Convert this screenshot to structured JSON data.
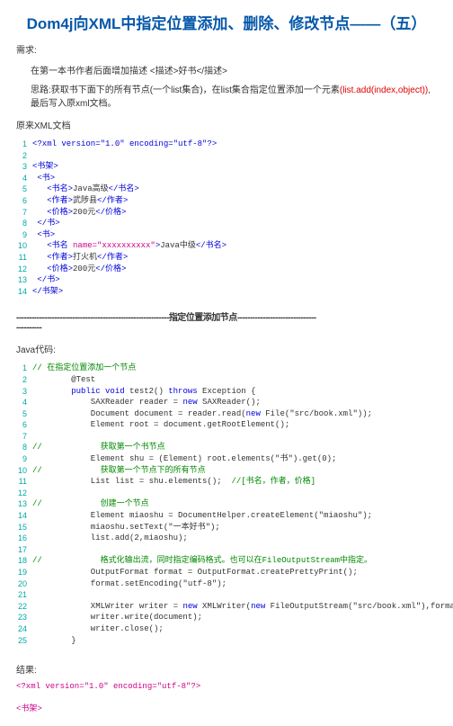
{
  "title": "Dom4j向XML中指定位置添加、删除、修改节点——（五）",
  "req_label": "需求:",
  "req_line1": "在第一本书作者后面增加描述 <描述>好书</描述>",
  "req_line2_a": "思路:获取书下面下的所有节点(一个list集合)，在list集合指定位置添加一个元素",
  "req_line2_b": "(list.add(index,object))",
  "req_line2_c": ",最后写入原xml文档。",
  "xml_label": "原来XML文档",
  "xml_lines": [
    {
      "n": "1",
      "parts": [
        {
          "c": "blue",
          "t": "<?xml version=\"1.0\" encoding=\"utf-8\"?>"
        }
      ]
    },
    {
      "n": "2",
      "parts": []
    },
    {
      "n": "3",
      "parts": [
        {
          "c": "blue",
          "t": "<书架>"
        }
      ]
    },
    {
      "n": "4",
      "parts": [
        {
          "c": "",
          "t": " "
        },
        {
          "c": "blue",
          "t": "<书>"
        }
      ]
    },
    {
      "n": "5",
      "parts": [
        {
          "c": "",
          "t": "   "
        },
        {
          "c": "blue",
          "t": "<书名>"
        },
        {
          "c": "",
          "t": "Java高级"
        },
        {
          "c": "blue",
          "t": "</书名>"
        }
      ]
    },
    {
      "n": "6",
      "parts": [
        {
          "c": "",
          "t": "   "
        },
        {
          "c": "blue",
          "t": "<作者>"
        },
        {
          "c": "",
          "t": "武陟县"
        },
        {
          "c": "blue",
          "t": "</作者>"
        }
      ]
    },
    {
      "n": "7",
      "parts": [
        {
          "c": "",
          "t": "   "
        },
        {
          "c": "blue",
          "t": "<价格>"
        },
        {
          "c": "",
          "t": "200元"
        },
        {
          "c": "blue",
          "t": "</价格>"
        }
      ]
    },
    {
      "n": "8",
      "parts": [
        {
          "c": "",
          "t": " "
        },
        {
          "c": "blue",
          "t": "</书>"
        }
      ]
    },
    {
      "n": "9",
      "parts": [
        {
          "c": "",
          "t": " "
        },
        {
          "c": "blue",
          "t": "<书>"
        }
      ]
    },
    {
      "n": "10",
      "parts": [
        {
          "c": "",
          "t": "   "
        },
        {
          "c": "blue",
          "t": "<书名 "
        },
        {
          "c": "magenta",
          "t": "name=\"xxxxxxxxxx\""
        },
        {
          "c": "blue",
          "t": ">"
        },
        {
          "c": "",
          "t": "Java中级"
        },
        {
          "c": "blue",
          "t": "</书名>"
        }
      ]
    },
    {
      "n": "11",
      "parts": [
        {
          "c": "",
          "t": "   "
        },
        {
          "c": "blue",
          "t": "<作者>"
        },
        {
          "c": "",
          "t": "打火机"
        },
        {
          "c": "blue",
          "t": "</作者>"
        }
      ]
    },
    {
      "n": "12",
      "parts": [
        {
          "c": "",
          "t": "   "
        },
        {
          "c": "blue",
          "t": "<价格>"
        },
        {
          "c": "",
          "t": "200元"
        },
        {
          "c": "blue",
          "t": "</价格>"
        }
      ]
    },
    {
      "n": "13",
      "parts": [
        {
          "c": "",
          "t": " "
        },
        {
          "c": "blue",
          "t": "</书>"
        }
      ]
    },
    {
      "n": "14",
      "parts": [
        {
          "c": "blue",
          "t": "</书架>"
        }
      ]
    }
  ],
  "sep1_a": "------------------------------------------------------------",
  "sep1_b": "指定位置添加节点",
  "sep1_c": "-------------------------------",
  "sep1_d": "----------",
  "java_label": "Java代码:",
  "java_lines": [
    {
      "n": "1",
      "parts": [
        {
          "c": "green",
          "t": "// 在指定位置添加一个节点"
        }
      ]
    },
    {
      "n": "2",
      "parts": [
        {
          "c": "",
          "t": "        @Test"
        }
      ]
    },
    {
      "n": "3",
      "parts": [
        {
          "c": "",
          "t": "        "
        },
        {
          "c": "kw",
          "t": "public void"
        },
        {
          "c": "",
          "t": " test2() "
        },
        {
          "c": "kw",
          "t": "throws"
        },
        {
          "c": "",
          "t": " Exception {"
        }
      ]
    },
    {
      "n": "4",
      "parts": [
        {
          "c": "",
          "t": "            SAXReader reader = "
        },
        {
          "c": "kw",
          "t": "new"
        },
        {
          "c": "",
          "t": " SAXReader();"
        }
      ]
    },
    {
      "n": "5",
      "parts": [
        {
          "c": "",
          "t": "            Document document = reader.read("
        },
        {
          "c": "kw",
          "t": "new"
        },
        {
          "c": "",
          "t": " File(\"src/book.xml\"));"
        }
      ]
    },
    {
      "n": "6",
      "parts": [
        {
          "c": "",
          "t": "            Element root = document.getRootElement();"
        }
      ]
    },
    {
      "n": "7",
      "parts": []
    },
    {
      "n": "8",
      "parts": [
        {
          "c": "green",
          "t": "//            获取第一个书节点"
        }
      ]
    },
    {
      "n": "9",
      "parts": [
        {
          "c": "",
          "t": "            Element shu = (Element) root.elements(\"书\").get(0);"
        }
      ]
    },
    {
      "n": "10",
      "parts": [
        {
          "c": "green",
          "t": "//            获取第一个节点下的所有节点"
        }
      ]
    },
    {
      "n": "11",
      "parts": [
        {
          "c": "",
          "t": "            List list = shu.elements();  "
        },
        {
          "c": "green",
          "t": "//[书名，作者，价格]"
        }
      ]
    },
    {
      "n": "12",
      "parts": []
    },
    {
      "n": "13",
      "parts": [
        {
          "c": "green",
          "t": "//            创建一个节点"
        }
      ]
    },
    {
      "n": "14",
      "parts": [
        {
          "c": "",
          "t": "            Element miaoshu = DocumentHelper.createElement(\"miaoshu\");"
        }
      ]
    },
    {
      "n": "15",
      "parts": [
        {
          "c": "",
          "t": "            miaoshu.setText(\"一本好书\");"
        }
      ]
    },
    {
      "n": "16",
      "parts": [
        {
          "c": "",
          "t": "            list.add(2,miaoshu);"
        }
      ]
    },
    {
      "n": "17",
      "parts": []
    },
    {
      "n": "18",
      "parts": [
        {
          "c": "green",
          "t": "//            格式化输出流，同时指定编码格式。也可以在FileOutputStream中指定。"
        }
      ]
    },
    {
      "n": "19",
      "parts": [
        {
          "c": "",
          "t": "            OutputFormat format = OutputFormat.createPrettyPrint();"
        }
      ]
    },
    {
      "n": "20",
      "parts": [
        {
          "c": "",
          "t": "            format.setEncoding(\"utf-8\");"
        }
      ]
    },
    {
      "n": "21",
      "parts": []
    },
    {
      "n": "22",
      "parts": [
        {
          "c": "",
          "t": "            XMLWriter writer = "
        },
        {
          "c": "kw",
          "t": "new"
        },
        {
          "c": "",
          "t": " XMLWriter("
        },
        {
          "c": "kw",
          "t": "new"
        },
        {
          "c": "",
          "t": " FileOutputStream(\"src/book.xml\"),format);"
        }
      ]
    },
    {
      "n": "23",
      "parts": [
        {
          "c": "",
          "t": "            writer.write(document);"
        }
      ]
    },
    {
      "n": "24",
      "parts": [
        {
          "c": "",
          "t": "            writer.close();"
        }
      ]
    },
    {
      "n": "25",
      "parts": [
        {
          "c": "",
          "t": "        }"
        }
      ]
    }
  ],
  "result_label": "结果:",
  "result_lines": [
    {
      "c": "magenta",
      "t": "<?xml version=\"1.0\" encoding=\"utf-8\"?>"
    },
    {
      "c": "",
      "t": ""
    },
    {
      "c": "magenta",
      "t": "<书架>"
    }
  ]
}
